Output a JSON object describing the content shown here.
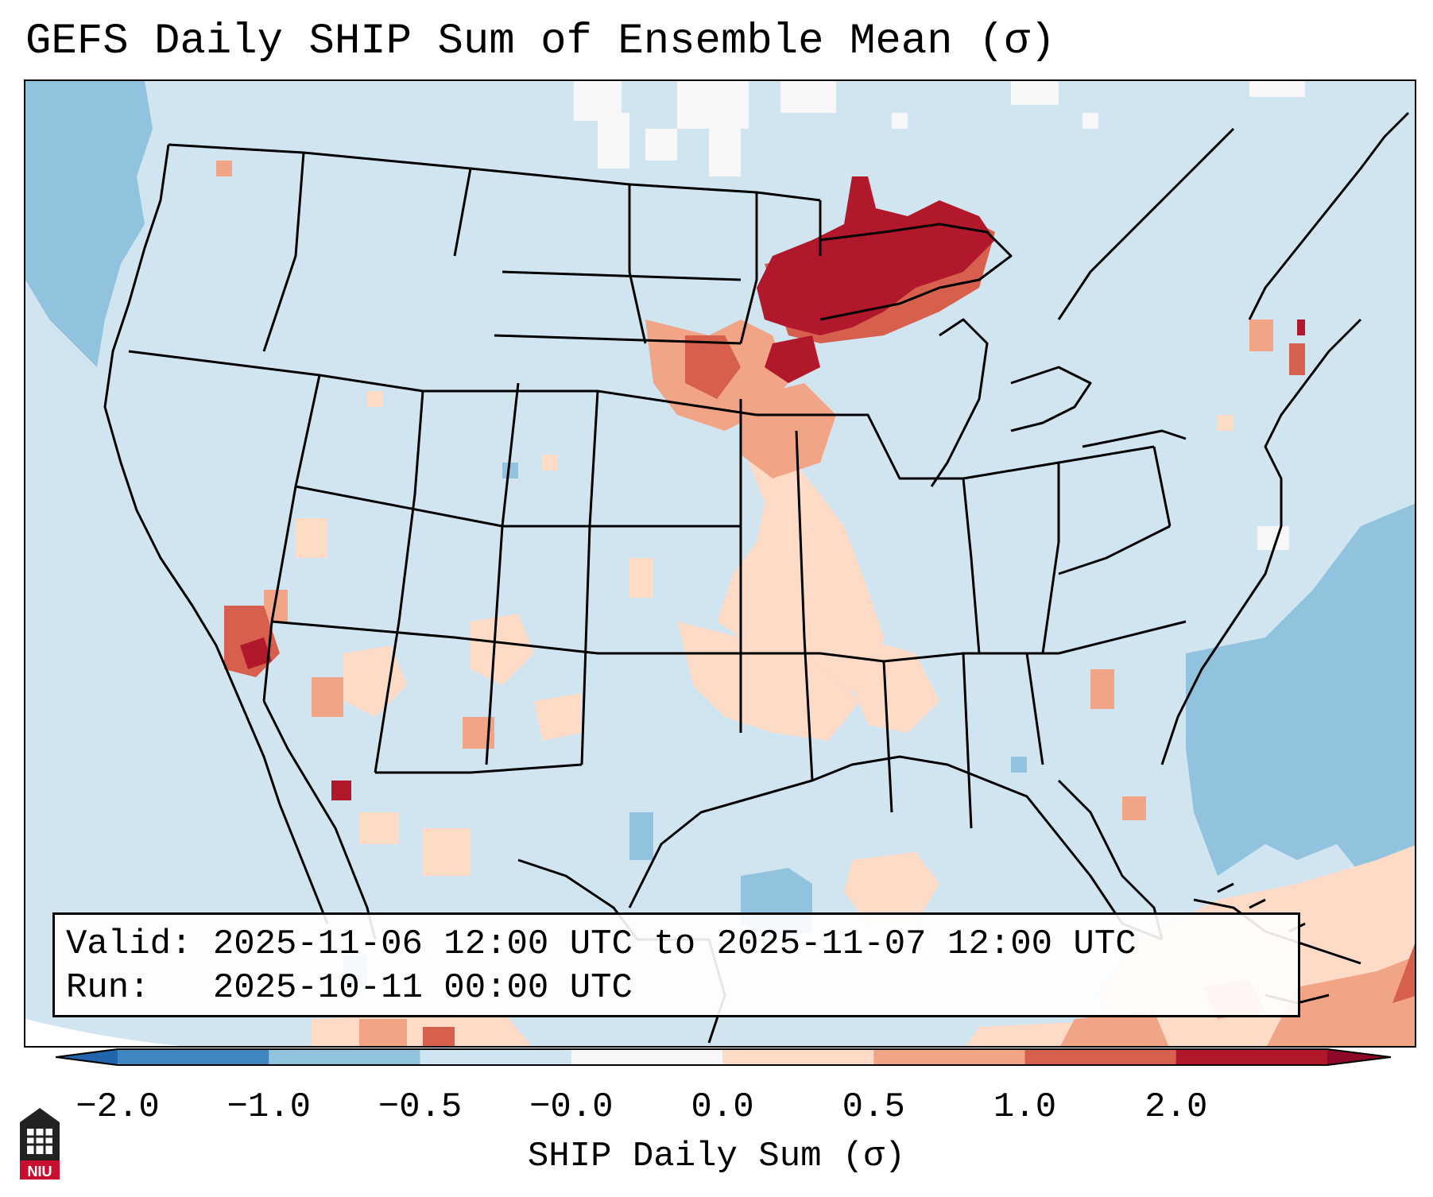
{
  "title": "GEFS Daily SHIP Sum of Ensemble Mean (σ)",
  "info": {
    "valid_label": "Valid:",
    "valid_range": "2025-11-06 12:00 UTC to 2025-11-07 12:00 UTC",
    "run_label": "Run:",
    "run_time": "2025-10-11 00:00 UTC"
  },
  "colorbar": {
    "label": "SHIP Daily Sum (σ)",
    "ticks": [
      "−2.0",
      "−1.0",
      "−0.5",
      "−0.0",
      "0.0",
      "0.5",
      "1.0",
      "2.0"
    ],
    "colors": [
      "#3f87c0",
      "#92c3de",
      "#d1e5f0",
      "#f7f7f7",
      "#fddbc7",
      "#f2a487",
      "#d6604d",
      "#b2182b"
    ],
    "under_color": "#2166ac",
    "over_color": "#8c0a28"
  },
  "map": {
    "background_color": "#d1e5f0",
    "anomaly_regions": [
      {
        "region": "Upper Midwest / Lake Superior",
        "category": "> 2.0"
      },
      {
        "region": "Southern California / Baja",
        "category": "> 2.0"
      },
      {
        "region": "Gulf of California",
        "category": "1.0 – 2.0"
      },
      {
        "region": "Northern Plains",
        "category": "0.5 – 2.0"
      },
      {
        "region": "Southern Plains",
        "category": "0.0 – 0.5"
      },
      {
        "region": "Caribbean",
        "category": "0.0 – 1.0"
      },
      {
        "region": "Western Atlantic",
        "category": "−1.0 – −0.5"
      },
      {
        "region": "Northeast Pacific",
        "category": "−1.0 – −0.5"
      }
    ]
  },
  "logo": {
    "text": "NIU"
  }
}
